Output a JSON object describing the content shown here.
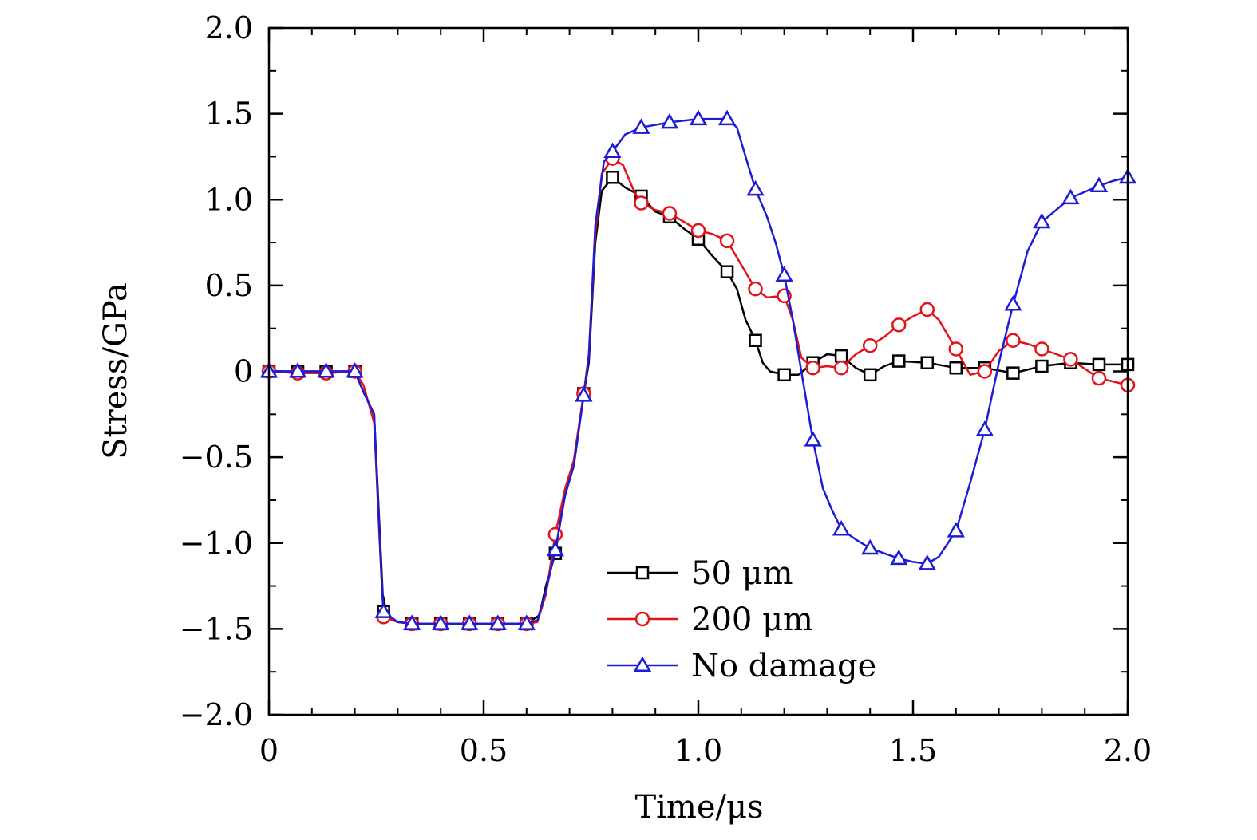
{
  "chart_data": {
    "type": "line",
    "title": "",
    "xlabel": "Time/μs",
    "ylabel": "Stress/GPa",
    "xlim": [
      0,
      2.0
    ],
    "ylim": [
      -2.0,
      2.0
    ],
    "xticks": [
      0,
      0.5,
      1.0,
      1.5,
      2.0
    ],
    "xtick_labels": [
      "0",
      "0.5",
      "1.0",
      "1.5",
      "2.0"
    ],
    "yticks": [
      2.0,
      1.5,
      1.0,
      0.5,
      0,
      -0.5,
      -1.0,
      -1.5,
      -2.0
    ],
    "ytick_labels": [
      "2.0",
      "1.5",
      "1.0",
      "0.5",
      "0",
      "−0.5",
      "−1.0",
      "−1.5",
      "−2.0"
    ],
    "legend_position": "bottom-center",
    "series": [
      {
        "name": "50 μm",
        "color": "#000000",
        "marker": "square",
        "line": [
          [
            0,
            0
          ],
          [
            0.067,
            0
          ],
          [
            0.133,
            0
          ],
          [
            0.2,
            0
          ],
          [
            0.22,
            -0.12
          ],
          [
            0.245,
            -0.25
          ],
          [
            0.265,
            -1.3
          ],
          [
            0.275,
            -1.42
          ],
          [
            0.3,
            -1.46
          ],
          [
            0.333,
            -1.47
          ],
          [
            0.4,
            -1.47
          ],
          [
            0.467,
            -1.47
          ],
          [
            0.533,
            -1.47
          ],
          [
            0.6,
            -1.47
          ],
          [
            0.63,
            -1.42
          ],
          [
            0.645,
            -1.25
          ],
          [
            0.667,
            -1.06
          ],
          [
            0.69,
            -0.7
          ],
          [
            0.71,
            -0.52
          ],
          [
            0.733,
            -0.13
          ],
          [
            0.745,
            0.05
          ],
          [
            0.76,
            0.75
          ],
          [
            0.775,
            1.05
          ],
          [
            0.8,
            1.13
          ],
          [
            0.83,
            1.07
          ],
          [
            0.867,
            1.02
          ],
          [
            0.9,
            0.93
          ],
          [
            0.933,
            0.9
          ],
          [
            0.967,
            0.83
          ],
          [
            1.0,
            0.77
          ],
          [
            1.03,
            0.68
          ],
          [
            1.067,
            0.58
          ],
          [
            1.09,
            0.48
          ],
          [
            1.11,
            0.3
          ],
          [
            1.133,
            0.18
          ],
          [
            1.15,
            0.05
          ],
          [
            1.167,
            0.0
          ],
          [
            1.2,
            -0.02
          ],
          [
            1.233,
            -0.02
          ],
          [
            1.267,
            0.05
          ],
          [
            1.3,
            0.1
          ],
          [
            1.333,
            0.09
          ],
          [
            1.367,
            0.02
          ],
          [
            1.4,
            -0.02
          ],
          [
            1.433,
            0.03
          ],
          [
            1.467,
            0.06
          ],
          [
            1.533,
            0.05
          ],
          [
            1.6,
            0.02
          ],
          [
            1.667,
            0.02
          ],
          [
            1.733,
            -0.01
          ],
          [
            1.8,
            0.03
          ],
          [
            1.867,
            0.05
          ],
          [
            1.933,
            0.04
          ],
          [
            2.0,
            0.04
          ]
        ],
        "markers": [
          [
            0,
            0
          ],
          [
            0.067,
            0
          ],
          [
            0.133,
            0
          ],
          [
            0.2,
            0
          ],
          [
            0.267,
            -1.4
          ],
          [
            0.333,
            -1.47
          ],
          [
            0.4,
            -1.47
          ],
          [
            0.467,
            -1.47
          ],
          [
            0.533,
            -1.47
          ],
          [
            0.6,
            -1.47
          ],
          [
            0.667,
            -1.06
          ],
          [
            0.733,
            -0.13
          ],
          [
            0.8,
            1.13
          ],
          [
            0.867,
            1.02
          ],
          [
            0.933,
            0.9
          ],
          [
            1.0,
            0.77
          ],
          [
            1.067,
            0.58
          ],
          [
            1.133,
            0.18
          ],
          [
            1.2,
            -0.02
          ],
          [
            1.267,
            0.05
          ],
          [
            1.333,
            0.09
          ],
          [
            1.4,
            -0.02
          ],
          [
            1.467,
            0.06
          ],
          [
            1.533,
            0.05
          ],
          [
            1.6,
            0.02
          ],
          [
            1.667,
            0.02
          ],
          [
            1.733,
            -0.01
          ],
          [
            1.8,
            0.03
          ],
          [
            1.867,
            0.05
          ],
          [
            1.933,
            0.04
          ],
          [
            2.0,
            0.04
          ]
        ]
      },
      {
        "name": "200 μm",
        "color": "#e3131b",
        "marker": "circle",
        "line": [
          [
            0,
            0
          ],
          [
            0.067,
            -0.01
          ],
          [
            0.133,
            -0.01
          ],
          [
            0.2,
            0
          ],
          [
            0.22,
            -0.08
          ],
          [
            0.245,
            -0.3
          ],
          [
            0.258,
            -1.0
          ],
          [
            0.267,
            -1.43
          ],
          [
            0.3,
            -1.46
          ],
          [
            0.333,
            -1.47
          ],
          [
            0.4,
            -1.47
          ],
          [
            0.467,
            -1.47
          ],
          [
            0.533,
            -1.47
          ],
          [
            0.6,
            -1.47
          ],
          [
            0.625,
            -1.46
          ],
          [
            0.645,
            -1.3
          ],
          [
            0.667,
            -0.95
          ],
          [
            0.69,
            -0.68
          ],
          [
            0.71,
            -0.52
          ],
          [
            0.733,
            -0.13
          ],
          [
            0.745,
            0.1
          ],
          [
            0.76,
            0.8
          ],
          [
            0.775,
            1.15
          ],
          [
            0.8,
            1.24
          ],
          [
            0.825,
            1.2
          ],
          [
            0.85,
            1.05
          ],
          [
            0.867,
            0.98
          ],
          [
            0.9,
            0.94
          ],
          [
            0.933,
            0.92
          ],
          [
            0.967,
            0.87
          ],
          [
            1.0,
            0.82
          ],
          [
            1.033,
            0.8
          ],
          [
            1.067,
            0.76
          ],
          [
            1.1,
            0.62
          ],
          [
            1.133,
            0.48
          ],
          [
            1.16,
            0.43
          ],
          [
            1.2,
            0.44
          ],
          [
            1.22,
            0.3
          ],
          [
            1.24,
            0.08
          ],
          [
            1.267,
            0.02
          ],
          [
            1.3,
            0.03
          ],
          [
            1.333,
            0.02
          ],
          [
            1.367,
            0.1
          ],
          [
            1.4,
            0.15
          ],
          [
            1.433,
            0.2
          ],
          [
            1.467,
            0.27
          ],
          [
            1.5,
            0.32
          ],
          [
            1.533,
            0.36
          ],
          [
            1.56,
            0.3
          ],
          [
            1.6,
            0.13
          ],
          [
            1.633,
            -0.02
          ],
          [
            1.667,
            0.0
          ],
          [
            1.7,
            0.12
          ],
          [
            1.733,
            0.18
          ],
          [
            1.767,
            0.16
          ],
          [
            1.8,
            0.13
          ],
          [
            1.867,
            0.07
          ],
          [
            1.933,
            -0.04
          ],
          [
            1.967,
            -0.06
          ],
          [
            2.0,
            -0.08
          ]
        ],
        "markers": [
          [
            0,
            0
          ],
          [
            0.067,
            -0.01
          ],
          [
            0.133,
            -0.01
          ],
          [
            0.2,
            0
          ],
          [
            0.267,
            -1.43
          ],
          [
            0.333,
            -1.47
          ],
          [
            0.4,
            -1.47
          ],
          [
            0.467,
            -1.47
          ],
          [
            0.533,
            -1.47
          ],
          [
            0.6,
            -1.47
          ],
          [
            0.667,
            -0.95
          ],
          [
            0.733,
            -0.13
          ],
          [
            0.8,
            1.24
          ],
          [
            0.867,
            0.98
          ],
          [
            0.933,
            0.92
          ],
          [
            1.0,
            0.82
          ],
          [
            1.067,
            0.76
          ],
          [
            1.133,
            0.48
          ],
          [
            1.2,
            0.44
          ],
          [
            1.267,
            0.02
          ],
          [
            1.333,
            0.02
          ],
          [
            1.4,
            0.15
          ],
          [
            1.467,
            0.27
          ],
          [
            1.533,
            0.36
          ],
          [
            1.6,
            0.13
          ],
          [
            1.667,
            0.0
          ],
          [
            1.733,
            0.18
          ],
          [
            1.8,
            0.13
          ],
          [
            1.867,
            0.07
          ],
          [
            1.933,
            -0.04
          ],
          [
            2.0,
            -0.08
          ]
        ]
      },
      {
        "name": "No damage",
        "color": "#1c1cd6",
        "marker": "triangle",
        "line": [
          [
            0,
            0
          ],
          [
            0.067,
            0
          ],
          [
            0.133,
            0
          ],
          [
            0.2,
            0
          ],
          [
            0.22,
            -0.12
          ],
          [
            0.245,
            -0.25
          ],
          [
            0.262,
            -1.2
          ],
          [
            0.267,
            -1.4
          ],
          [
            0.3,
            -1.46
          ],
          [
            0.333,
            -1.47
          ],
          [
            0.4,
            -1.47
          ],
          [
            0.467,
            -1.47
          ],
          [
            0.533,
            -1.47
          ],
          [
            0.6,
            -1.47
          ],
          [
            0.625,
            -1.45
          ],
          [
            0.645,
            -1.28
          ],
          [
            0.667,
            -1.04
          ],
          [
            0.69,
            -0.72
          ],
          [
            0.71,
            -0.55
          ],
          [
            0.733,
            -0.14
          ],
          [
            0.745,
            0.08
          ],
          [
            0.76,
            0.85
          ],
          [
            0.78,
            1.22
          ],
          [
            0.8,
            1.28
          ],
          [
            0.83,
            1.38
          ],
          [
            0.867,
            1.42
          ],
          [
            0.933,
            1.45
          ],
          [
            1.0,
            1.47
          ],
          [
            1.067,
            1.47
          ],
          [
            1.09,
            1.42
          ],
          [
            1.11,
            1.25
          ],
          [
            1.133,
            1.06
          ],
          [
            1.16,
            0.9
          ],
          [
            1.18,
            0.75
          ],
          [
            1.2,
            0.56
          ],
          [
            1.22,
            0.3
          ],
          [
            1.24,
            0.0
          ],
          [
            1.267,
            -0.4
          ],
          [
            1.29,
            -0.68
          ],
          [
            1.31,
            -0.8
          ],
          [
            1.333,
            -0.92
          ],
          [
            1.367,
            -0.98
          ],
          [
            1.4,
            -1.03
          ],
          [
            1.433,
            -1.06
          ],
          [
            1.467,
            -1.09
          ],
          [
            1.5,
            -1.11
          ],
          [
            1.533,
            -1.12
          ],
          [
            1.56,
            -1.08
          ],
          [
            1.6,
            -0.93
          ],
          [
            1.633,
            -0.65
          ],
          [
            1.667,
            -0.34
          ],
          [
            1.7,
            0.05
          ],
          [
            1.733,
            0.39
          ],
          [
            1.767,
            0.7
          ],
          [
            1.8,
            0.87
          ],
          [
            1.867,
            1.01
          ],
          [
            1.933,
            1.08
          ],
          [
            1.967,
            1.11
          ],
          [
            2.0,
            1.13
          ]
        ],
        "markers": [
          [
            0,
            0
          ],
          [
            0.067,
            0
          ],
          [
            0.133,
            0
          ],
          [
            0.2,
            0
          ],
          [
            0.267,
            -1.4
          ],
          [
            0.333,
            -1.47
          ],
          [
            0.4,
            -1.47
          ],
          [
            0.467,
            -1.47
          ],
          [
            0.533,
            -1.47
          ],
          [
            0.6,
            -1.47
          ],
          [
            0.667,
            -1.04
          ],
          [
            0.733,
            -0.14
          ],
          [
            0.8,
            1.28
          ],
          [
            0.867,
            1.42
          ],
          [
            0.933,
            1.45
          ],
          [
            1.0,
            1.47
          ],
          [
            1.067,
            1.47
          ],
          [
            1.133,
            1.06
          ],
          [
            1.2,
            0.56
          ],
          [
            1.267,
            -0.4
          ],
          [
            1.333,
            -0.92
          ],
          [
            1.4,
            -1.03
          ],
          [
            1.467,
            -1.09
          ],
          [
            1.533,
            -1.12
          ],
          [
            1.6,
            -0.93
          ],
          [
            1.667,
            -0.34
          ],
          [
            1.733,
            0.39
          ],
          [
            1.8,
            0.87
          ],
          [
            1.867,
            1.01
          ],
          [
            1.933,
            1.08
          ],
          [
            2.0,
            1.13
          ]
        ]
      }
    ]
  }
}
